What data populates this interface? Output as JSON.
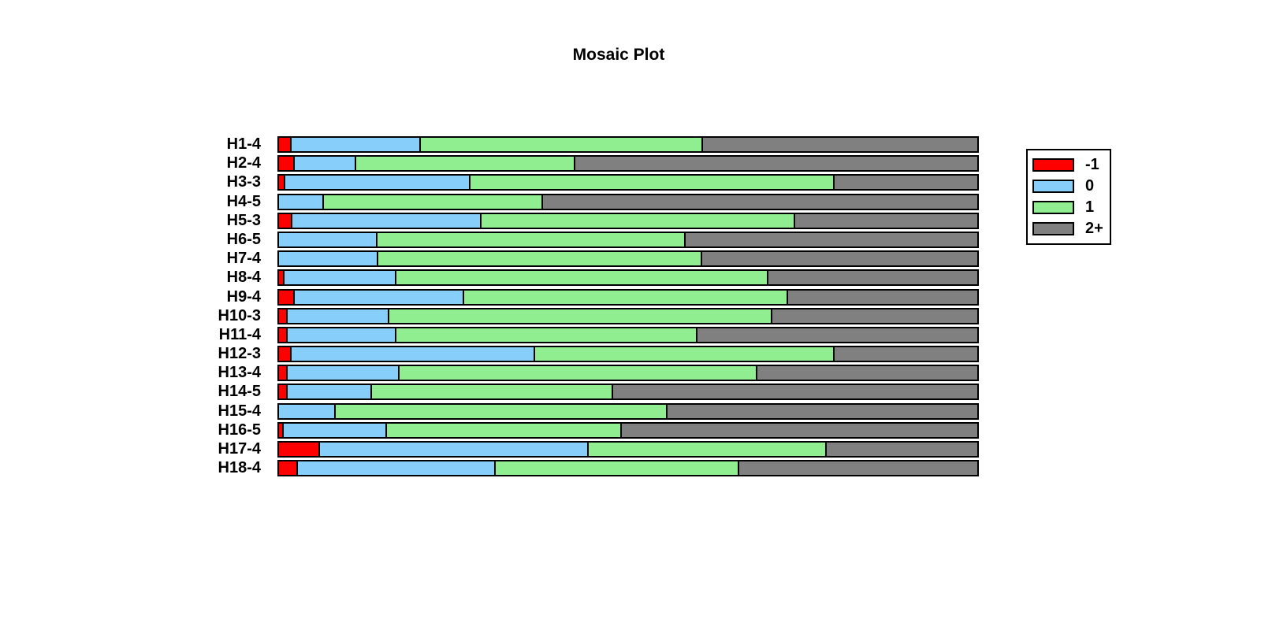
{
  "title": "Mosaic Plot",
  "legend": {
    "position": "right",
    "items": [
      {
        "label": "-1",
        "color": "#FF0000"
      },
      {
        "label": "0",
        "color": "#87CEFA"
      },
      {
        "label": "1",
        "color": "#90EE90"
      },
      {
        "label": "2+",
        "color": "#808080"
      }
    ]
  },
  "chart_data": {
    "type": "bar",
    "orientation": "horizontal",
    "stacked": true,
    "title": "Mosaic Plot",
    "xlabel": "",
    "ylabel": "",
    "units": "percent of row width",
    "x_range_percent": [
      0,
      100
    ],
    "grid": false,
    "legend_position": "right",
    "categories": [
      "H1-4",
      "H2-4",
      "H3-3",
      "H4-5",
      "H5-3",
      "H6-5",
      "H7-4",
      "H8-4",
      "H9-4",
      "H10-3",
      "H11-4",
      "H12-3",
      "H13-4",
      "H14-5",
      "H15-4",
      "H16-5",
      "H17-4",
      "H18-4"
    ],
    "series": [
      {
        "name": "-1",
        "color": "#FF0000",
        "values": [
          1.6,
          2.0,
          0.7,
          0,
          1.7,
          0,
          0,
          0.6,
          2.0,
          1.0,
          1.0,
          1.6,
          1.0,
          1.0,
          0,
          0.5,
          5.7,
          2.5
        ]
      },
      {
        "name": "0",
        "color": "#87CEFA",
        "values": [
          18.4,
          8.7,
          26.5,
          6.2,
          27.1,
          13.9,
          14.1,
          15.9,
          24.3,
          14.5,
          15.5,
          34.9,
          15.9,
          12.0,
          7.9,
          14.6,
          38.5,
          28.3
        ]
      },
      {
        "name": "1",
        "color": "#90EE90",
        "values": [
          40.5,
          31.3,
          52.2,
          31.3,
          44.9,
          44.2,
          46.3,
          53.4,
          46.4,
          54.9,
          43.2,
          42.9,
          51.4,
          34.5,
          47.5,
          33.7,
          34.1,
          34.9
        ]
      },
      {
        "name": "2+",
        "color": "#808080",
        "values": [
          39.5,
          58.0,
          20.6,
          62.5,
          26.3,
          41.9,
          39.6,
          30.1,
          27.3,
          29.6,
          40.3,
          20.6,
          31.7,
          52.5,
          44.6,
          51.2,
          21.7,
          34.3
        ]
      }
    ]
  }
}
